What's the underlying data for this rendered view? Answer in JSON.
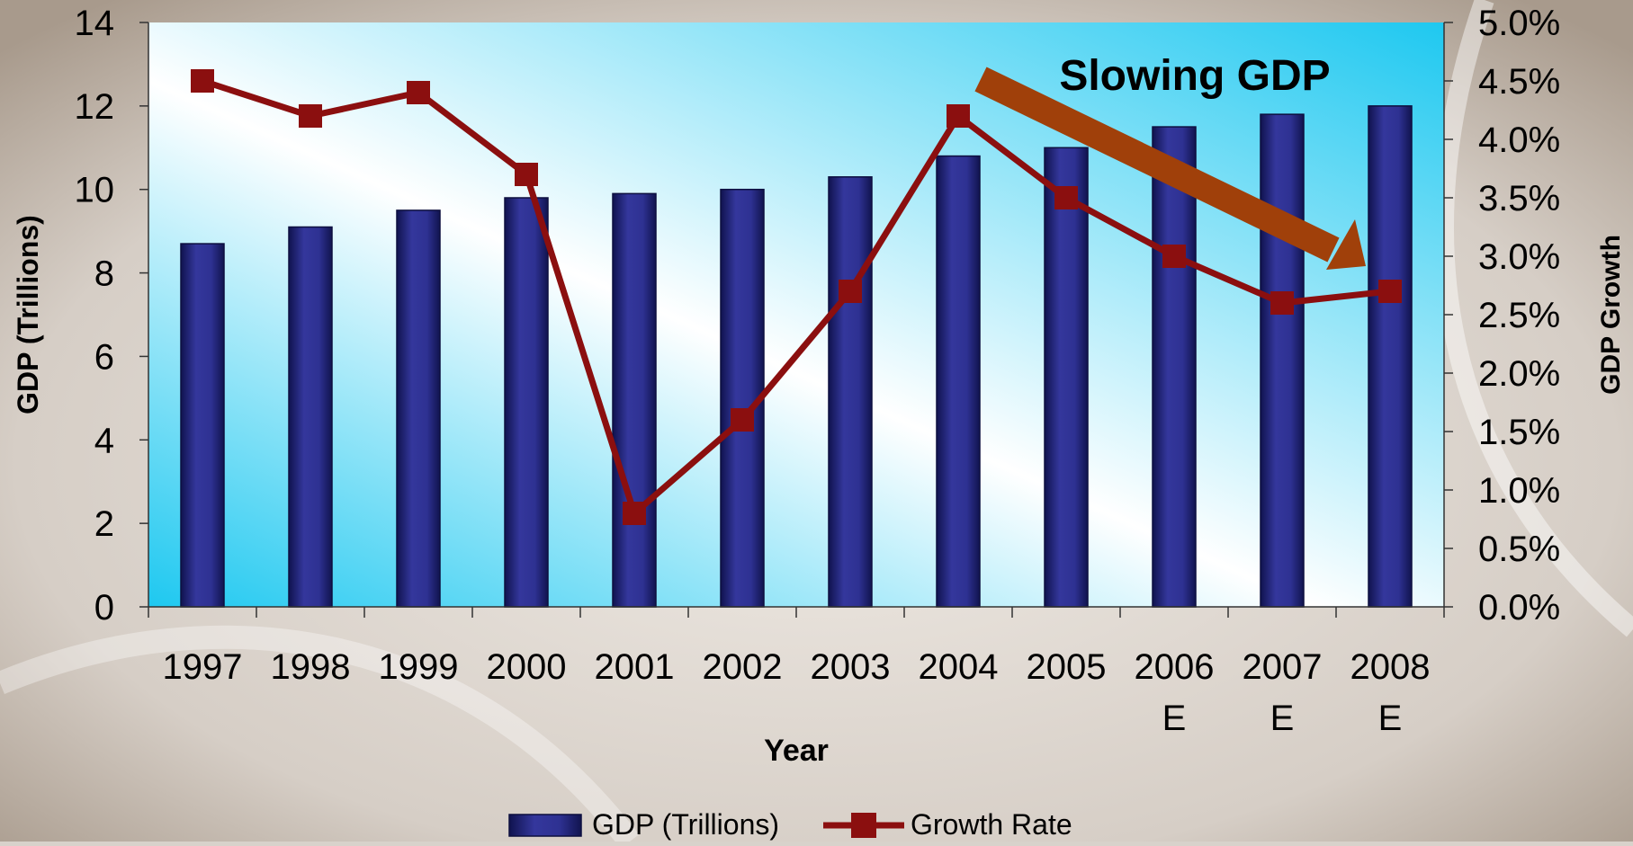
{
  "chart_data": {
    "type": "bar",
    "categories": [
      "1997",
      "1998",
      "1999",
      "2000",
      "2001",
      "2002",
      "2003",
      "2004",
      "2005",
      "2006",
      "2007",
      "2008"
    ],
    "category_notes": [
      "",
      "",
      "",
      "",
      "",
      "",
      "",
      "",
      "",
      "E",
      "E",
      "E"
    ],
    "series": [
      {
        "name": "GDP (Trillions)",
        "type": "bar",
        "axis": "left",
        "values": [
          8.7,
          9.1,
          9.5,
          9.8,
          9.9,
          10.0,
          10.3,
          10.8,
          11.0,
          11.5,
          11.8,
          12.0
        ],
        "color": "#2e3192"
      },
      {
        "name": "Growth Rate",
        "type": "line",
        "axis": "right",
        "values": [
          0.045,
          0.042,
          0.044,
          0.037,
          0.008,
          0.016,
          0.027,
          0.042,
          0.035,
          0.03,
          0.026,
          0.027
        ],
        "color": "#8b0f0f"
      }
    ],
    "xlabel": "Year",
    "ylabel": "GDP (Trillions)",
    "y2label": "GDP Growth",
    "ylim": [
      0,
      14
    ],
    "yticks": [
      "0",
      "2",
      "4",
      "6",
      "8",
      "10",
      "12",
      "14"
    ],
    "y2lim": [
      0,
      0.05
    ],
    "y2ticks": [
      "0.0%",
      "0.5%",
      "1.0%",
      "1.5%",
      "2.0%",
      "2.5%",
      "3.0%",
      "3.5%",
      "4.0%",
      "4.5%",
      "5.0%"
    ],
    "annotation": "Slowing GDP",
    "annotation_arrow_color": "#a0400a",
    "legend_position": "bottom",
    "grid": false
  }
}
